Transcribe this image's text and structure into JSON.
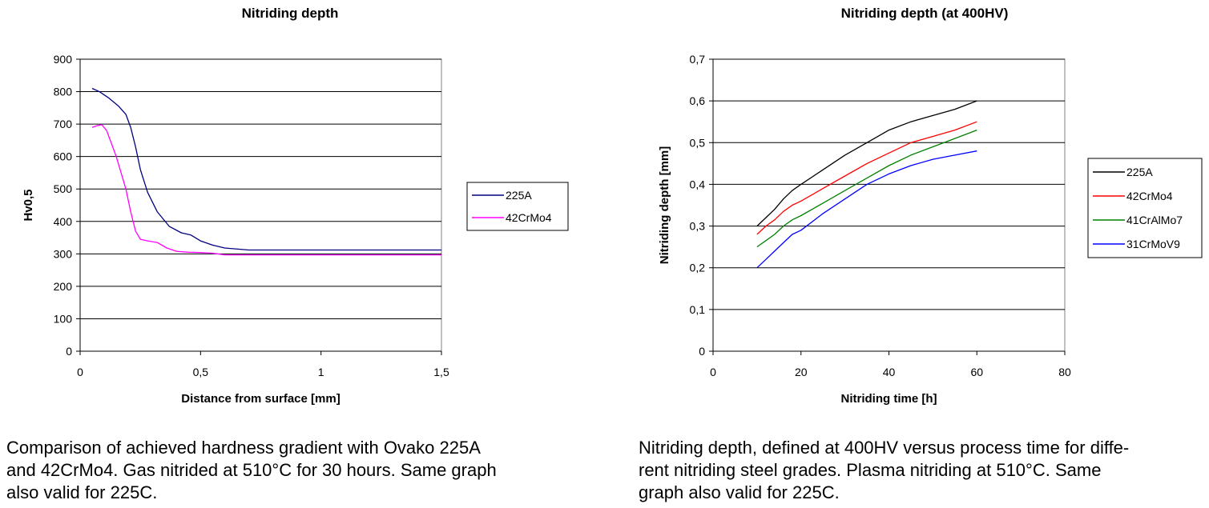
{
  "chart_data": [
    {
      "type": "line",
      "title": "Nitriding depth",
      "xlabel": "Distance from surface [mm]",
      "ylabel": "Hv0,5",
      "xlim": [
        0,
        1.5
      ],
      "ylim": [
        0,
        900
      ],
      "xticks": [
        0,
        0.5,
        1,
        1.5
      ],
      "xtick_labels": [
        "0",
        "0,5",
        "1",
        "1,5"
      ],
      "yticks": [
        0,
        100,
        200,
        300,
        400,
        500,
        600,
        700,
        800,
        900
      ],
      "ytick_labels": [
        "0",
        "100",
        "200",
        "300",
        "400",
        "500",
        "600",
        "700",
        "800",
        "900"
      ],
      "grid": "horizontal",
      "legend_position": "right",
      "series": [
        {
          "name": "225A",
          "color": "#000080",
          "points": [
            [
              0.05,
              810
            ],
            [
              0.08,
              800
            ],
            [
              0.12,
              780
            ],
            [
              0.16,
              755
            ],
            [
              0.19,
              730
            ],
            [
              0.21,
              690
            ],
            [
              0.23,
              630
            ],
            [
              0.25,
              560
            ],
            [
              0.28,
              490
            ],
            [
              0.32,
              430
            ],
            [
              0.37,
              385
            ],
            [
              0.42,
              365
            ],
            [
              0.46,
              358
            ],
            [
              0.5,
              340
            ],
            [
              0.55,
              327
            ],
            [
              0.6,
              318
            ],
            [
              0.7,
              312
            ],
            [
              1.0,
              312
            ],
            [
              1.5,
              312
            ]
          ]
        },
        {
          "name": "42CrMo4",
          "color": "#ff00ff",
          "points": [
            [
              0.05,
              690
            ],
            [
              0.07,
              695
            ],
            [
              0.09,
              698
            ],
            [
              0.11,
              680
            ],
            [
              0.13,
              640
            ],
            [
              0.15,
              600
            ],
            [
              0.17,
              550
            ],
            [
              0.19,
              500
            ],
            [
              0.21,
              430
            ],
            [
              0.23,
              370
            ],
            [
              0.25,
              345
            ],
            [
              0.28,
              340
            ],
            [
              0.32,
              335
            ],
            [
              0.36,
              318
            ],
            [
              0.4,
              308
            ],
            [
              0.45,
              305
            ],
            [
              0.5,
              304
            ],
            [
              0.55,
              302
            ],
            [
              0.6,
              297
            ],
            [
              1.0,
              297
            ],
            [
              1.5,
              297
            ]
          ]
        }
      ]
    },
    {
      "type": "line",
      "title": "Nitriding depth (at 400HV)",
      "xlabel": "Nitriding time [h]",
      "ylabel": "Nitriding depth [mm]",
      "xlim": [
        0,
        80
      ],
      "ylim": [
        0,
        0.7
      ],
      "xticks": [
        0,
        20,
        40,
        60,
        80
      ],
      "xtick_labels": [
        "0",
        "20",
        "40",
        "60",
        "80"
      ],
      "yticks": [
        0,
        0.1,
        0.2,
        0.3,
        0.4,
        0.5,
        0.6,
        0.7
      ],
      "ytick_labels": [
        "0",
        "0,1",
        "0,2",
        "0,3",
        "0,4",
        "0,5",
        "0,6",
        "0,7"
      ],
      "grid": "horizontal",
      "legend_position": "right",
      "series": [
        {
          "name": "225A",
          "color": "#000000",
          "points": [
            [
              10,
              0.3
            ],
            [
              12,
              0.32
            ],
            [
              14,
              0.34
            ],
            [
              16,
              0.365
            ],
            [
              18,
              0.385
            ],
            [
              20,
              0.4
            ],
            [
              25,
              0.435
            ],
            [
              30,
              0.47
            ],
            [
              35,
              0.5
            ],
            [
              40,
              0.53
            ],
            [
              45,
              0.55
            ],
            [
              50,
              0.565
            ],
            [
              55,
              0.58
            ],
            [
              60,
              0.6
            ]
          ]
        },
        {
          "name": "42CrMo4",
          "color": "#ff0000",
          "points": [
            [
              10,
              0.28
            ],
            [
              12,
              0.3
            ],
            [
              14,
              0.315
            ],
            [
              16,
              0.335
            ],
            [
              18,
              0.35
            ],
            [
              20,
              0.36
            ],
            [
              25,
              0.39
            ],
            [
              30,
              0.42
            ],
            [
              35,
              0.45
            ],
            [
              40,
              0.475
            ],
            [
              45,
              0.5
            ],
            [
              50,
              0.515
            ],
            [
              55,
              0.53
            ],
            [
              60,
              0.55
            ]
          ]
        },
        {
          "name": "41CrAlMo7",
          "color": "#008000",
          "points": [
            [
              10,
              0.25
            ],
            [
              12,
              0.265
            ],
            [
              14,
              0.28
            ],
            [
              16,
              0.3
            ],
            [
              18,
              0.315
            ],
            [
              20,
              0.325
            ],
            [
              25,
              0.355
            ],
            [
              30,
              0.385
            ],
            [
              35,
              0.415
            ],
            [
              40,
              0.445
            ],
            [
              45,
              0.47
            ],
            [
              50,
              0.49
            ],
            [
              55,
              0.51
            ],
            [
              60,
              0.53
            ]
          ]
        },
        {
          "name": "31CrMoV9",
          "color": "#0000ff",
          "points": [
            [
              10,
              0.2
            ],
            [
              12,
              0.22
            ],
            [
              14,
              0.24
            ],
            [
              16,
              0.26
            ],
            [
              18,
              0.28
            ],
            [
              20,
              0.29
            ],
            [
              25,
              0.33
            ],
            [
              30,
              0.365
            ],
            [
              35,
              0.4
            ],
            [
              40,
              0.425
            ],
            [
              45,
              0.445
            ],
            [
              50,
              0.46
            ],
            [
              55,
              0.47
            ],
            [
              60,
              0.48
            ]
          ]
        }
      ]
    }
  ],
  "captions": {
    "left": [
      "Comparison of achieved hardness gradient with Ovako 225A",
      "and 42CrMo4. Gas nitrided at 510°C for 30 hours. Same graph",
      "also valid for 225C."
    ],
    "right": [
      "Nitriding depth, defined at 400HV versus process time for diffe-",
      "rent nitriding steel grades. Plasma nitriding at 510°C. Same",
      "graph also valid for 225C."
    ]
  }
}
